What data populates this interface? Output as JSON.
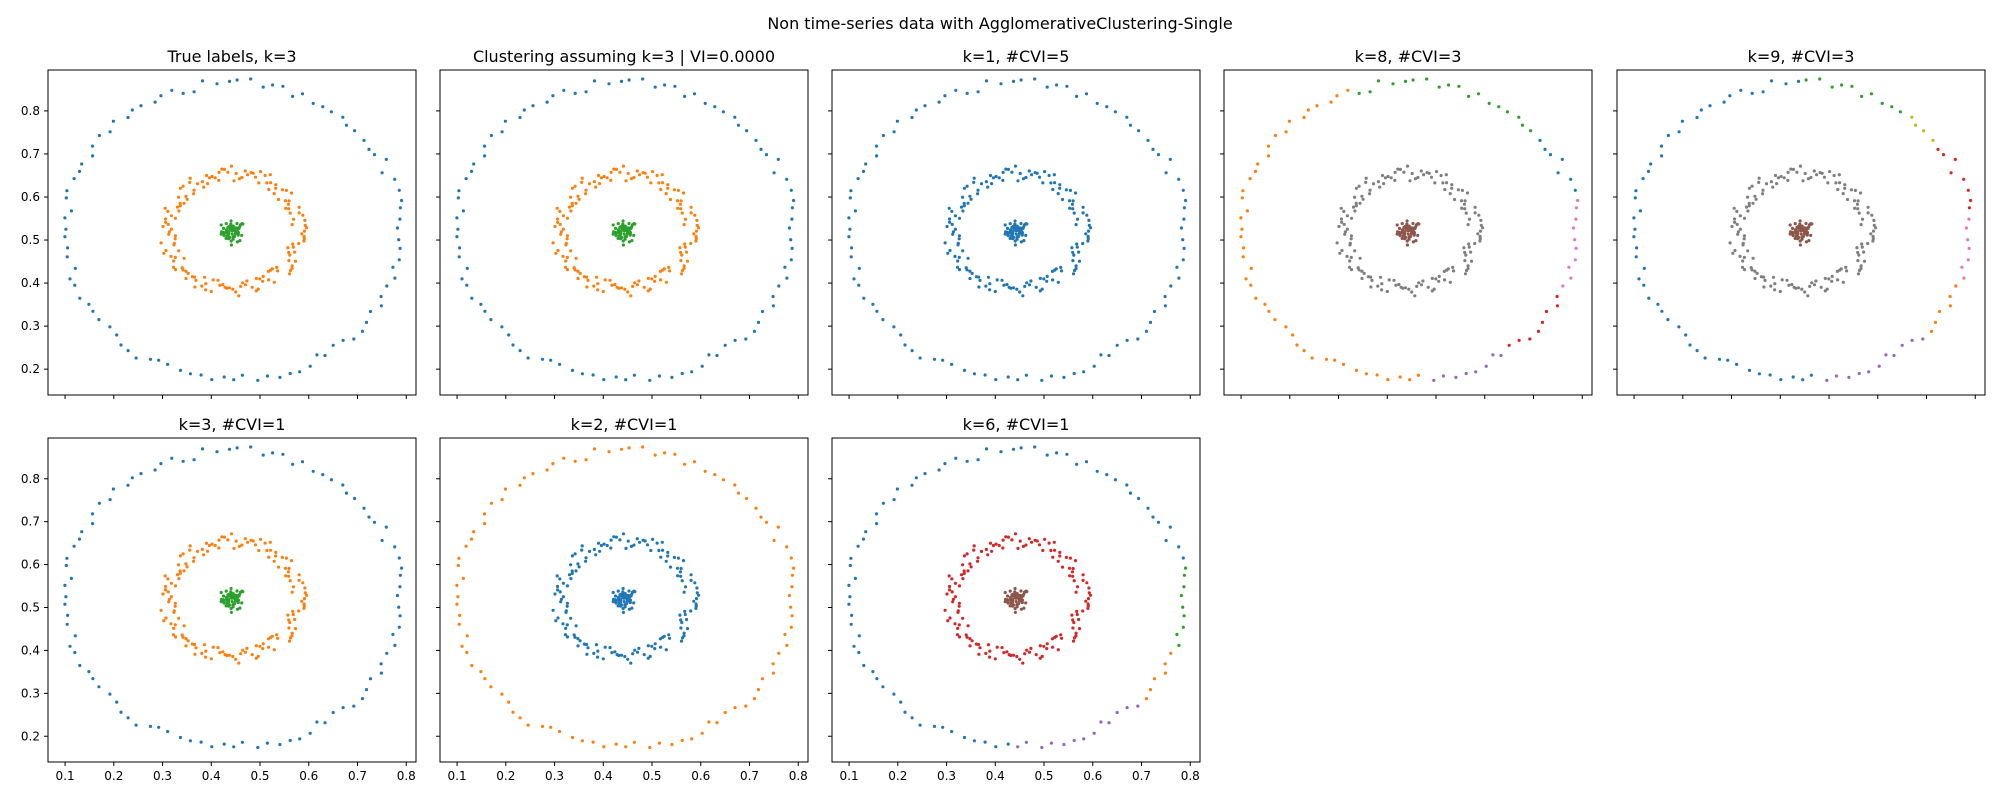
{
  "suptitle": "Non time-series data with AgglomerativeClustering-Single",
  "palette": [
    "#1f77b4",
    "#ff7f0e",
    "#2ca02c",
    "#d62728",
    "#9467bd",
    "#8c564b",
    "#e377c2",
    "#7f7f7f",
    "#bcbd22"
  ],
  "chart_data": [
    {
      "type": "scatter",
      "title": "True labels, k=3",
      "scheme": "true",
      "xticks": [],
      "yticks": [
        0.2,
        0.3,
        0.4,
        0.5,
        0.6,
        0.7,
        0.8
      ]
    },
    {
      "type": "scatter",
      "title": "Clustering assuming k=3 | VI=0.0000",
      "scheme": "k3",
      "xticks": [],
      "yticks": []
    },
    {
      "type": "scatter",
      "title": "k=1, #CVI=5",
      "scheme": "k1",
      "xticks": [],
      "yticks": []
    },
    {
      "type": "scatter",
      "title": "k=8, #CVI=3",
      "scheme": "k8",
      "xticks": [],
      "yticks": []
    },
    {
      "type": "scatter",
      "title": "k=9, #CVI=3",
      "scheme": "k9",
      "xticks": [],
      "yticks": []
    },
    {
      "type": "scatter",
      "title": "k=3, #CVI=1",
      "scheme": "true",
      "xticks": [
        0.1,
        0.2,
        0.3,
        0.4,
        0.5,
        0.6,
        0.7,
        0.8
      ],
      "yticks": [
        0.2,
        0.3,
        0.4,
        0.5,
        0.6,
        0.7,
        0.8
      ]
    },
    {
      "type": "scatter",
      "title": "k=2, #CVI=1",
      "scheme": "k2",
      "xticks": [
        0.1,
        0.2,
        0.3,
        0.4,
        0.5,
        0.6,
        0.7,
        0.8
      ],
      "yticks": []
    },
    {
      "type": "scatter",
      "title": "k=6, #CVI=1",
      "scheme": "k6",
      "xticks": [
        0.1,
        0.2,
        0.3,
        0.4,
        0.5,
        0.6,
        0.7,
        0.8
      ],
      "yticks": []
    }
  ],
  "axes": {
    "xlim": [
      0.065,
      0.82
    ],
    "ylim": [
      0.14,
      0.895
    ]
  },
  "data_model": {
    "center": [
      0.445,
      0.52
    ],
    "blob_sigma": 0.012,
    "blob_n": 60,
    "inner_radius": 0.135,
    "inner_n": 150,
    "outer_radius": 0.345,
    "outer_n": 95
  }
}
